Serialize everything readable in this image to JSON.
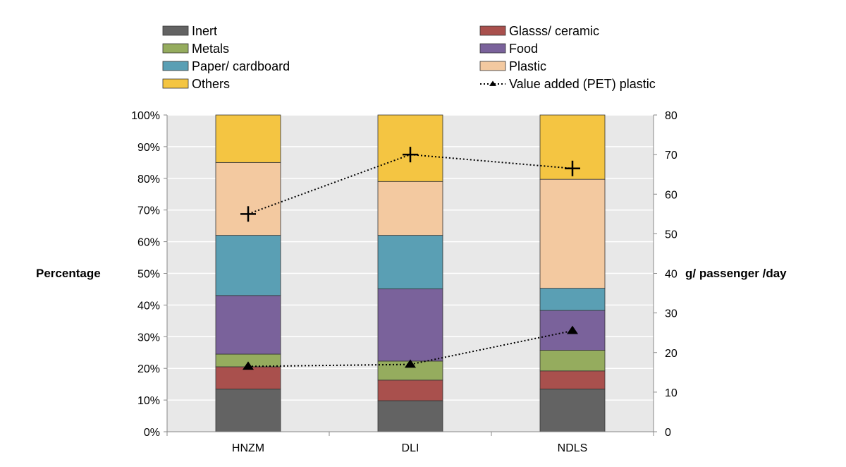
{
  "chart_data": {
    "type": "bar",
    "stacked": true,
    "categories": [
      "HNZM",
      "DLI",
      "NDLS"
    ],
    "series": [
      {
        "name": "Inert",
        "values": [
          13.5,
          9.8,
          13.5
        ],
        "color": "#636363"
      },
      {
        "name": "Glasss/ ceramic",
        "values": [
          7.0,
          6.5,
          5.7
        ],
        "color": "#a9504d"
      },
      {
        "name": "Metals",
        "values": [
          4.0,
          6.0,
          6.5
        ],
        "color": "#95ac5e"
      },
      {
        "name": "Food",
        "values": [
          18.5,
          22.8,
          12.6
        ],
        "color": "#7a629b"
      },
      {
        "name": "Paper/ cardboard",
        "values": [
          19.0,
          16.9,
          7.0
        ],
        "color": "#5a9fb4"
      },
      {
        "name": "Plastic",
        "values": [
          23.0,
          17.0,
          34.4
        ],
        "color": "#f3c9a0"
      },
      {
        "name": "Others",
        "values": [
          15.0,
          21.0,
          20.3
        ],
        "color": "#f4c542"
      }
    ],
    "line_series": [
      {
        "name": "Value added (PET) plastic",
        "marker": "triangle",
        "axis": "right",
        "values": [
          16.5,
          17.0,
          25.5
        ]
      },
      {
        "name": "",
        "marker": "plus",
        "axis": "right",
        "values": [
          55,
          70,
          66.5
        ]
      }
    ],
    "y_left": {
      "label": "Percentage",
      "min": 0,
      "max": 100,
      "step": 10,
      "ticks": [
        "0%",
        "10%",
        "20%",
        "30%",
        "40%",
        "50%",
        "60%",
        "70%",
        "80%",
        "90%",
        "100%"
      ]
    },
    "y_right": {
      "label": "g/ passenger /day",
      "min": 0,
      "max": 80,
      "step": 10,
      "ticks": [
        "0",
        "10",
        "20",
        "30",
        "40",
        "50",
        "60",
        "70",
        "80"
      ]
    },
    "legend_position": "top",
    "grid": true,
    "plot_background": "#e8e8e8"
  }
}
